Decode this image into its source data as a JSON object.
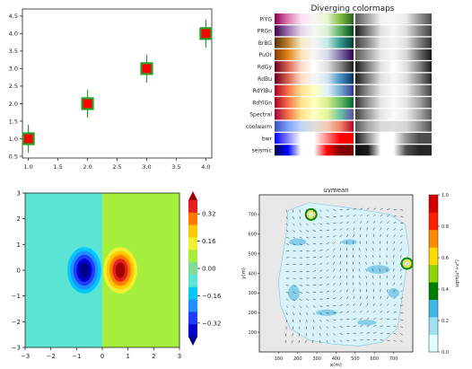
{
  "figure": {
    "panels": 4
  },
  "chart_data": [
    {
      "type": "scatter",
      "panel": "errorbar",
      "x": [
        1.0,
        2.0,
        3.0,
        4.0
      ],
      "y": [
        1.0,
        2.0,
        3.0,
        4.0
      ],
      "yerr": [
        0.4,
        0.4,
        0.4,
        0.4
      ],
      "marker": "square",
      "marker_fill": "#ff0000",
      "marker_edge": "#2a9d2a",
      "errorbar_color": "#2a9d2a",
      "xlim": [
        0.9,
        4.1
      ],
      "ylim": [
        0.45,
        4.7
      ],
      "xticks": [
        "1.0",
        "1.5",
        "2.0",
        "2.5",
        "3.0",
        "3.5",
        "4.0"
      ],
      "xtick_values": [
        1.0,
        1.5,
        2.0,
        2.5,
        3.0,
        3.5,
        4.0
      ],
      "yticks": [
        "0.5",
        "1.0",
        "1.5",
        "2.0",
        "2.5",
        "3.0",
        "3.5",
        "4.0",
        "4.5"
      ],
      "ytick_values": [
        0.5,
        1.0,
        1.5,
        2.0,
        2.5,
        3.0,
        3.5,
        4.0,
        4.5
      ],
      "title": "",
      "xlabel": "",
      "ylabel": ""
    },
    {
      "type": "table",
      "panel": "colormaps",
      "title": "Diverging colormaps",
      "rows": [
        {
          "name": "PiYG",
          "colors": [
            "#8e0152",
            "#de77ae",
            "#fde0ef",
            "#f7f7f7",
            "#e6f5d0",
            "#7fbc41",
            "#276419"
          ]
        },
        {
          "name": "PRGn",
          "colors": [
            "#40004b",
            "#9970ab",
            "#e7d4e8",
            "#f7f7f7",
            "#d9f0d3",
            "#5aae61",
            "#00441b"
          ]
        },
        {
          "name": "BrBG",
          "colors": [
            "#543005",
            "#bf812d",
            "#f6e8c3",
            "#f5f5f5",
            "#c7eae5",
            "#35978f",
            "#003c30"
          ]
        },
        {
          "name": "PuOr",
          "colors": [
            "#7f3b08",
            "#e08214",
            "#fee0b6",
            "#f7f7f7",
            "#d8daeb",
            "#8073ac",
            "#2d004b"
          ]
        },
        {
          "name": "RdGy",
          "colors": [
            "#67001f",
            "#d6604d",
            "#fddbc7",
            "#ffffff",
            "#e0e0e0",
            "#878787",
            "#1a1a1a"
          ]
        },
        {
          "name": "RdBu",
          "colors": [
            "#67001f",
            "#d6604d",
            "#fddbc7",
            "#f7f7f7",
            "#d1e5f0",
            "#4393c3",
            "#053061"
          ]
        },
        {
          "name": "RdYlBu",
          "colors": [
            "#a50026",
            "#f46d43",
            "#fee090",
            "#ffffbf",
            "#e0f3f8",
            "#74add1",
            "#313695"
          ]
        },
        {
          "name": "RdYlGn",
          "colors": [
            "#a50026",
            "#f46d43",
            "#fee08b",
            "#ffffbf",
            "#d9ef8b",
            "#66bd63",
            "#006837"
          ]
        },
        {
          "name": "Spectral",
          "colors": [
            "#9e0142",
            "#f46d43",
            "#fee08b",
            "#ffffbf",
            "#e6f598",
            "#66c2a5",
            "#5e4fa2"
          ]
        },
        {
          "name": "coolwarm",
          "colors": [
            "#3b4cc0",
            "#7b9ff9",
            "#c0d4f5",
            "#dddddd",
            "#f2cbb7",
            "#ee8468",
            "#b40426"
          ]
        },
        {
          "name": "bwr",
          "colors": [
            "#0000ff",
            "#8080ff",
            "#ffffff",
            "#ffffff",
            "#ff8080",
            "#ff0000",
            "#ff0000"
          ]
        },
        {
          "name": "seismic",
          "colors": [
            "#00004c",
            "#0000ff",
            "#ffffff",
            "#ffffff",
            "#ff0000",
            "#7f0000",
            "#7f0000"
          ]
        }
      ],
      "grayscale_levels": [
        [
          0.35,
          0.65,
          0.95,
          0.97,
          0.92,
          0.6,
          0.3
        ],
        [
          0.1,
          0.5,
          0.88,
          0.97,
          0.88,
          0.55,
          0.25
        ],
        [
          0.25,
          0.55,
          0.9,
          0.96,
          0.88,
          0.52,
          0.2
        ],
        [
          0.35,
          0.62,
          0.9,
          0.97,
          0.85,
          0.45,
          0.08
        ],
        [
          0.1,
          0.5,
          0.88,
          1.0,
          0.88,
          0.53,
          0.1
        ],
        [
          0.1,
          0.5,
          0.88,
          0.97,
          0.88,
          0.55,
          0.15
        ],
        [
          0.2,
          0.58,
          0.9,
          0.98,
          0.92,
          0.62,
          0.25
        ],
        [
          0.2,
          0.58,
          0.9,
          0.98,
          0.9,
          0.65,
          0.3
        ],
        [
          0.25,
          0.6,
          0.9,
          0.98,
          0.92,
          0.68,
          0.35
        ],
        [
          0.35,
          0.65,
          0.85,
          0.87,
          0.83,
          0.6,
          0.3
        ],
        [
          0.1,
          0.55,
          1.0,
          1.0,
          0.58,
          0.3,
          0.3
        ],
        [
          0.05,
          0.1,
          1.0,
          1.0,
          0.3,
          0.15,
          0.15
        ]
      ]
    },
    {
      "type": "heatmap",
      "panel": "contour",
      "xlim": [
        -3,
        3
      ],
      "ylim": [
        -3,
        3
      ],
      "xticks": [
        "−3",
        "−2",
        "−1",
        "0",
        "1",
        "2",
        "3"
      ],
      "xtick_values": [
        -3,
        -2,
        -1,
        0,
        1,
        2,
        3
      ],
      "yticks": [
        "−3",
        "−2",
        "−1",
        "0",
        "1",
        "2",
        "3"
      ],
      "ytick_values": [
        -3,
        -2,
        -1,
        0,
        1,
        2,
        3
      ],
      "colorbar_ticks": [
        "0.32",
        "0.16",
        "0.00",
        "−0.16",
        "−0.32"
      ],
      "colorbar_tick_values": [
        0.32,
        0.16,
        0.0,
        -0.16,
        -0.32
      ],
      "levels": [
        -0.48,
        -0.4,
        -0.32,
        -0.24,
        -0.16,
        -0.08,
        0.0,
        0.08,
        0.16,
        0.24,
        0.32,
        0.4,
        0.48
      ],
      "level_colors": [
        "#00008b",
        "#0000cd",
        "#1e3cff",
        "#1e90ff",
        "#00c8ff",
        "#5ae6d2",
        "#7fdc96",
        "#a6ee3c",
        "#f0f032",
        "#ffc800",
        "#ff7800",
        "#e61e1e",
        "#a00000"
      ],
      "centers": [
        {
          "x": -0.7,
          "y": 0.0,
          "value": -0.43
        },
        {
          "x": 0.7,
          "y": 0.0,
          "value": 0.43
        }
      ],
      "title": "",
      "xlabel": "",
      "ylabel": ""
    },
    {
      "type": "heatmap",
      "panel": "map",
      "title": "uvmean",
      "xlabel": "x(m)",
      "ylabel": "y(m)",
      "colorbar_label": "sqrt(u²+v²)",
      "xticks": [
        "100",
        "200",
        "300",
        "400",
        "500",
        "600",
        "700"
      ],
      "xtick_values": [
        100,
        200,
        300,
        400,
        500,
        600,
        700
      ],
      "yticks": [
        "100",
        "200",
        "300",
        "400",
        "500",
        "600",
        "700"
      ],
      "ytick_values": [
        100,
        200,
        300,
        400,
        500,
        600,
        700
      ],
      "xlim": [
        0,
        800
      ],
      "ylim": [
        0,
        800
      ],
      "colorbar_ticks": [
        "0.0",
        "0.2",
        "0.4",
        "0.6",
        "0.8",
        "1.0"
      ],
      "colorbar_tick_values": [
        0.0,
        0.2,
        0.4,
        0.6,
        0.8,
        1.0
      ],
      "colorbar_colors": [
        "#e0ffff",
        "#9fe2f5",
        "#3db8e6",
        "#008000",
        "#8fd400",
        "#ffdc00",
        "#ff8c00",
        "#ff2000",
        "#d40000"
      ],
      "land_color": "#e8e8e8",
      "water_color": "#d9f3fb"
    }
  ]
}
